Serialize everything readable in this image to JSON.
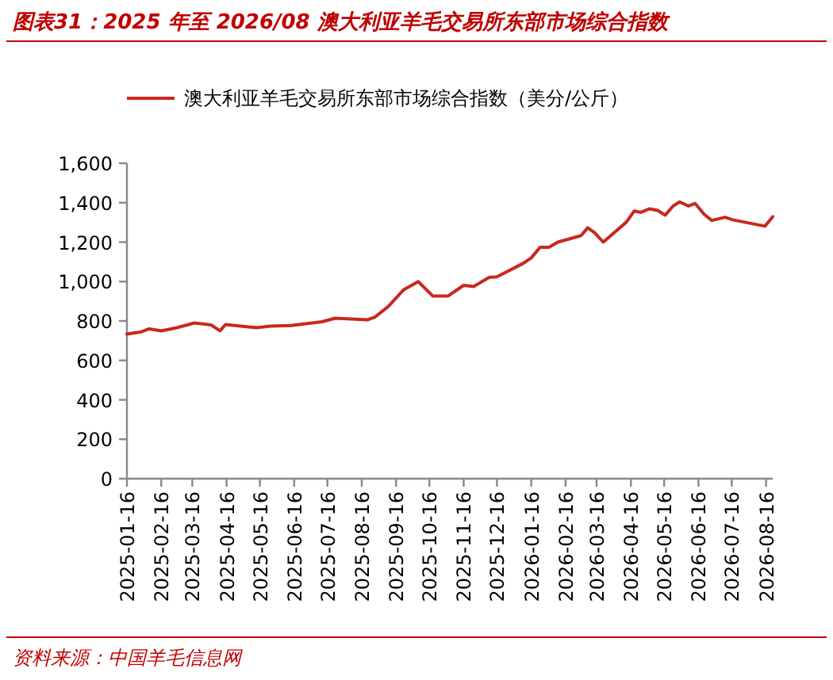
{
  "chart_data": {
    "type": "line",
    "title": "图表31：2025 年至 2026/08 澳大利亚羊毛交易所东部市场综合指数",
    "annotations": [
      "资料来源：中国羊毛信息网"
    ],
    "x": [
      "2025-01-16",
      "2025-01-29",
      "2025-02-05",
      "2025-02-16",
      "2025-03-02",
      "2025-03-18",
      "2025-04-02",
      "2025-04-10",
      "2025-04-15",
      "2025-05-13",
      "2025-05-25",
      "2025-06-13",
      "2025-07-11",
      "2025-07-23",
      "2025-08-21",
      "2025-08-28",
      "2025-09-09",
      "2025-09-23",
      "2025-10-06",
      "2025-10-19",
      "2025-11-02",
      "2025-11-16",
      "2025-11-25",
      "2025-12-09",
      "2025-12-16",
      "2026-01-09",
      "2026-01-16",
      "2026-01-24",
      "2026-02-01",
      "2026-02-09",
      "2026-03-02",
      "2026-03-08",
      "2026-03-14",
      "2026-03-22",
      "2026-04-12",
      "2026-04-19",
      "2026-04-25",
      "2026-05-03",
      "2026-05-10",
      "2026-05-17",
      "2026-05-24",
      "2026-05-30",
      "2026-06-07",
      "2026-06-13",
      "2026-06-21",
      "2026-06-28",
      "2026-07-10",
      "2026-07-17",
      "2026-08-15",
      "2026-08-22"
    ],
    "series": [
      {
        "name": "澳大利亚羊毛交易所东部市场综合指数（美分/公斤）",
        "color": "#c8281e",
        "values": [
          734,
          745,
          760,
          750,
          766,
          790,
          780,
          750,
          782,
          766,
          774,
          777,
          796,
          814,
          806,
          820,
          874,
          959,
          1000,
          927,
          927,
          981,
          975,
          1021,
          1024,
          1093,
          1120,
          1174,
          1174,
          1200,
          1233,
          1273,
          1249,
          1200,
          1302,
          1358,
          1351,
          1369,
          1361,
          1337,
          1383,
          1404,
          1383,
          1396,
          1342,
          1310,
          1326,
          1313,
          1281,
          1329
        ]
      }
    ],
    "xlim": [
      "2025-01-16",
      "2026-08-22"
    ],
    "xticks": [
      "2025-01-16",
      "2025-02-16",
      "2025-03-16",
      "2025-04-16",
      "2025-05-16",
      "2025-06-16",
      "2025-07-16",
      "2025-08-16",
      "2025-09-16",
      "2025-10-16",
      "2025-11-16",
      "2025-12-16",
      "2026-01-16",
      "2026-02-16",
      "2026-03-16",
      "2026-04-16",
      "2026-05-16",
      "2026-06-16",
      "2026-07-16",
      "2026-08-16"
    ],
    "ylim": [
      0,
      1600
    ],
    "yticks": [
      {
        "value": 0,
        "label": "0"
      },
      {
        "value": 200,
        "label": "200"
      },
      {
        "value": 400,
        "label": "400"
      },
      {
        "value": 600,
        "label": "600"
      },
      {
        "value": 800,
        "label": "800"
      },
      {
        "value": 1000,
        "label": "1,000"
      },
      {
        "value": 1200,
        "label": "1,200"
      },
      {
        "value": 1400,
        "label": "1,400"
      },
      {
        "value": 1600,
        "label": "1,600"
      }
    ],
    "grid": false,
    "legend": "top",
    "marker": "none",
    "line_style": "solid"
  }
}
